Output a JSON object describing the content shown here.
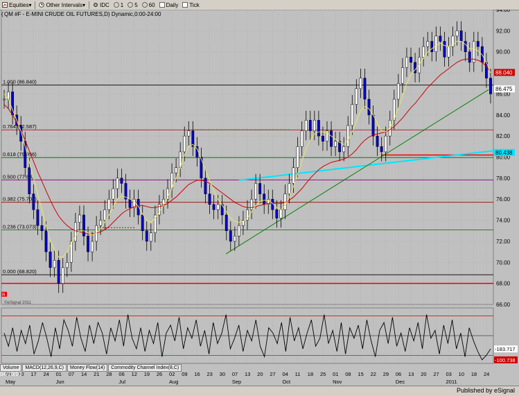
{
  "toolbar": {
    "items": [
      {
        "label": "Equities",
        "icon": "dropdown-arrow"
      },
      {
        "label": "Other Intervals",
        "icon": "dropdown-arrow"
      },
      {
        "label": "IDC"
      },
      {
        "label": "1"
      },
      {
        "label": "5"
      },
      {
        "label": "60"
      },
      {
        "label": "Daily"
      },
      {
        "label": "Tick"
      }
    ]
  },
  "chart_title": "QM #F - E-MINI CRUDE OIL FUTURES,D) Dynamic,0:00-24:00",
  "chart_title_prefix": "(",
  "footer": {
    "published": "Published by eSignal",
    "logo_text": "eSignal"
  },
  "watermark": "©eSignal 2011",
  "r_marker": "R",
  "tabs": [
    "Volume",
    "MACD(12,26,9,C)",
    "Money Flow(14)",
    "Commodity Channel Index(8,C)"
  ],
  "colors": {
    "background": "#c0c0c0",
    "grid": "#a8a8a8",
    "up_candle": "#ffffff",
    "down_candle": "#0000cc",
    "ma_fast": "#e8e860",
    "ma_slow": "#cc0000",
    "trendline": "#008000",
    "cyan_line": "#00e5ff"
  },
  "chart_data": {
    "type": "candlestick",
    "title": "QM #F - E-MINI CRUDE OIL FUTURES,D) Dynamic,0:00-24:00",
    "y_ticks": [
      66.0,
      68.0,
      70.0,
      72.0,
      74.0,
      76.0,
      78.0,
      80.0,
      82.0,
      84.0,
      86.0,
      88.0,
      90.0,
      92.0,
      94.0
    ],
    "ylim": [
      66.0,
      94.0
    ],
    "x_ticks": [
      "03",
      "10",
      "17",
      "24",
      "01",
      "07",
      "14",
      "21",
      "28",
      "06",
      "12",
      "19",
      "26",
      "02",
      "09",
      "16",
      "23",
      "30",
      "07",
      "13",
      "20",
      "27",
      "04",
      "11",
      "18",
      "25",
      "01",
      "08",
      "15",
      "22",
      "29",
      "06",
      "13",
      "20",
      "27",
      "03",
      "10",
      "18",
      "24"
    ],
    "month_labels": [
      {
        "label": "May",
        "at": "03"
      },
      {
        "label": "Jun",
        "at": "01"
      },
      {
        "label": "Jul",
        "at": "06"
      },
      {
        "label": "Aug",
        "at": "02"
      },
      {
        "label": "Sep",
        "at": "07"
      },
      {
        "label": "Oct",
        "at": "04"
      },
      {
        "label": "Nov",
        "at": "01"
      },
      {
        "label": "Dec",
        "at": "06"
      },
      {
        "label": "2011",
        "at": "03"
      }
    ],
    "start_date_label": "04/20/10",
    "fib_levels": [
      {
        "label": "1.000 (86.840)",
        "value": 86.84,
        "color": "#000000"
      },
      {
        "label": "0.764 (82.587)",
        "value": 82.587,
        "color": "#990000"
      },
      {
        "label": "0.618 (79.956)",
        "value": 79.956,
        "color": "#006600"
      },
      {
        "label": "0.500 (77.83)",
        "value": 77.83,
        "color": "#800080"
      },
      {
        "label": "0.382 (75.704)",
        "value": 75.704,
        "color": "#990000"
      },
      {
        "label": "0.236 (73.073)",
        "value": 73.073,
        "color": "#006600"
      },
      {
        "label": "0.000 (68.820)",
        "value": 68.82,
        "color": "#000000"
      }
    ],
    "price_labels": [
      {
        "text": "88.040",
        "value": 88.04,
        "bg": "#cc0000",
        "fg": "#ffffff"
      },
      {
        "text": "86.475",
        "value": 86.475,
        "bg": "#ffffff",
        "fg": "#000000"
      },
      {
        "text": "80.438",
        "value": 80.438,
        "bg": "#00e5ff",
        "fg": "#000000"
      }
    ],
    "close_series": [
      85.5,
      86.2,
      84.0,
      83.0,
      81.5,
      79.0,
      76.5,
      75.0,
      73.5,
      73.0,
      71.0,
      69.5,
      70.2,
      68.0,
      69.5,
      70.0,
      72.0,
      73.8,
      74.5,
      72.5,
      71.0,
      72.0,
      73.5,
      74.0,
      75.0,
      76.0,
      77.0,
      78.0,
      77.5,
      76.0,
      75.2,
      76.0,
      74.5,
      73.0,
      72.0,
      72.8,
      74.5,
      75.5,
      76.0,
      77.0,
      78.5,
      79.0,
      80.5,
      82.0,
      82.5,
      81.0,
      80.0,
      78.0,
      76.5,
      75.5,
      75.0,
      75.5,
      74.5,
      73.0,
      72.0,
      72.5,
      73.5,
      74.0,
      75.0,
      76.0,
      77.5,
      76.5,
      75.5,
      76.0,
      75.0,
      74.2,
      75.0,
      76.5,
      77.5,
      79.0,
      81.0,
      82.5,
      83.5,
      82.5,
      83.5,
      82.0,
      81.5,
      82.5,
      81.0,
      81.5,
      80.5,
      81.0,
      83.0,
      85.0,
      86.5,
      87.5,
      85.5,
      84.0,
      82.0,
      81.0,
      80.5,
      82.0,
      83.5,
      85.5,
      87.0,
      88.5,
      89.5,
      89.0,
      88.0,
      89.5,
      90.5,
      91.0,
      90.0,
      91.5,
      91.0,
      89.5,
      90.5,
      91.5,
      92.0,
      91.0,
      90.0,
      89.0,
      91.0,
      90.5,
      89.0,
      87.5,
      86.0
    ],
    "ma_fast": [
      86.0,
      85.5,
      84.5,
      83.5,
      82.5,
      81.0,
      79.5,
      78.0,
      76.5,
      75.0,
      73.5,
      72.0,
      71.2,
      70.5,
      70.5,
      71.0,
      71.8,
      72.5,
      73.0,
      73.0,
      72.8,
      72.6,
      72.8,
      73.2,
      73.8,
      74.5,
      75.3,
      76.0,
      76.3,
      76.2,
      76.0,
      75.8,
      75.3,
      74.6,
      74.0,
      73.8,
      74.2,
      74.8,
      75.4,
      76.2,
      77.0,
      78.0,
      79.0,
      80.2,
      81.0,
      81.2,
      80.8,
      79.8,
      78.8,
      77.8,
      76.8,
      76.0,
      75.4,
      74.8,
      74.2,
      73.9,
      73.8,
      73.9,
      74.2,
      74.8,
      75.4,
      75.8,
      75.9,
      75.9,
      75.6,
      75.2,
      75.0,
      75.4,
      76.2,
      77.2,
      78.4,
      79.6,
      80.8,
      81.6,
      82.2,
      82.4,
      82.4,
      82.3,
      82.0,
      81.7,
      81.4,
      81.2,
      81.6,
      82.4,
      83.4,
      84.4,
      84.8,
      84.6,
      84.0,
      83.2,
      82.5,
      82.4,
      82.8,
      83.6,
      84.6,
      85.8,
      87.0,
      87.8,
      88.3,
      88.8,
      89.4,
      90.0,
      90.3,
      90.6,
      90.8,
      90.6,
      90.5,
      90.7,
      91.0,
      91.0,
      90.7,
      90.3,
      90.3,
      90.1,
      89.7,
      89.0,
      88.0
    ],
    "ma_slow": [
      85.0,
      84.6,
      84.0,
      83.3,
      82.5,
      81.6,
      80.6,
      79.6,
      78.6,
      77.7,
      76.8,
      75.9,
      75.1,
      74.4,
      73.9,
      73.5,
      73.2,
      73.0,
      72.9,
      72.8,
      72.7,
      72.7,
      72.8,
      72.9,
      73.1,
      73.4,
      73.8,
      74.2,
      74.6,
      74.9,
      75.1,
      75.3,
      75.4,
      75.4,
      75.3,
      75.2,
      75.2,
      75.3,
      75.4,
      75.6,
      75.9,
      76.2,
      76.6,
      77.0,
      77.4,
      77.6,
      77.8,
      77.8,
      77.7,
      77.5,
      77.2,
      76.9,
      76.6,
      76.3,
      76.0,
      75.7,
      75.5,
      75.3,
      75.2,
      75.2,
      75.3,
      75.4,
      75.5,
      75.6,
      75.6,
      75.6,
      75.6,
      75.7,
      75.9,
      76.2,
      76.6,
      77.0,
      77.5,
      78.0,
      78.4,
      78.8,
      79.1,
      79.3,
      79.5,
      79.6,
      79.7,
      79.8,
      80.0,
      80.3,
      80.7,
      81.2,
      81.6,
      81.9,
      82.1,
      82.2,
      82.3,
      82.4,
      82.6,
      82.9,
      83.3,
      83.7,
      84.2,
      84.7,
      85.1,
      85.6,
      86.1,
      86.6,
      87.0,
      87.4,
      87.8,
      88.1,
      88.4,
      88.7,
      89.0,
      89.2,
      89.3,
      89.3,
      89.3,
      89.2,
      89.0,
      88.6,
      88.1
    ],
    "oscillator": {
      "levels": [
        -183.717,
        -100.738
      ],
      "labels": [
        "-100.738",
        "-183.717"
      ],
      "series": [
        20,
        -80,
        60,
        -120,
        40,
        -60,
        80,
        -140,
        -40,
        100,
        -20,
        -160,
        60,
        -100,
        120,
        40,
        -80,
        140,
        -20,
        -120,
        80,
        -60,
        100,
        20,
        -140,
        60,
        -40,
        120,
        -80,
        160,
        -20,
        -100,
        60,
        -120,
        40,
        -60,
        100,
        -160,
        20,
        80,
        -40,
        140,
        -100,
        60,
        -20,
        120,
        -80,
        40,
        -140,
        100,
        -60,
        20,
        160,
        -100,
        -20,
        80,
        -120,
        40,
        -40,
        120,
        -80,
        -160,
        60,
        20,
        -60,
        100,
        -120,
        140,
        -40,
        60,
        -100,
        20,
        120,
        -80,
        -20,
        160,
        -60,
        40,
        -120,
        100,
        -140,
        60,
        -20,
        80,
        -100,
        120,
        -40,
        -160,
        40,
        100,
        -60,
        140,
        -80,
        20,
        -120,
        60,
        -40,
        100,
        -100,
        160,
        -20,
        40,
        -140,
        80,
        -60,
        120,
        -100,
        20,
        -160,
        60,
        -40,
        -120,
        -183,
        -150,
        -100
      ]
    }
  }
}
